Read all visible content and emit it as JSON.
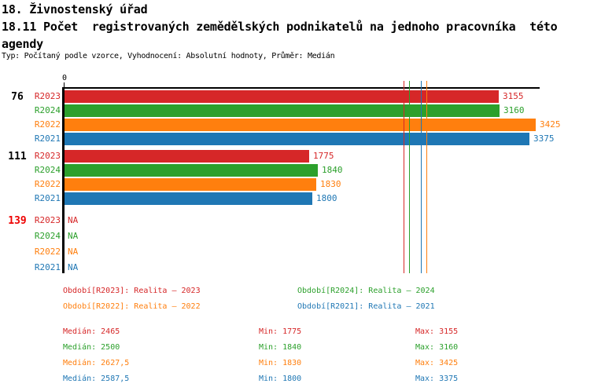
{
  "header": {
    "title": "18. Živnostenský úřad",
    "subtitle_line1": "18.11 Počet  registrovaných zemědělských podnikatelů na jednoho pracovníka  této",
    "subtitle_line2": "agendy",
    "meta": "Typ: Počítaný podle vzorce, Vyhodnocení: Absolutní hodnoty, Průměr: Medián"
  },
  "colors": {
    "R2023": "#d62728",
    "R2024": "#2ca02c",
    "R2022": "#ff7f0e",
    "R2021": "#1f77b4",
    "group_label": "#000000",
    "group_label_na": "#ee0000",
    "axis": "#000000"
  },
  "chart_data": {
    "type": "bar",
    "orientation": "horizontal",
    "x_axis": {
      "origin_label": "0",
      "xlim": [
        0,
        3460
      ],
      "grid": false
    },
    "na_text": "NA",
    "series_order": [
      "R2023",
      "R2024",
      "R2022",
      "R2021"
    ],
    "groups": [
      {
        "label": "76",
        "has_data": true,
        "values": {
          "R2023": 3155,
          "R2024": 3160,
          "R2022": 3425,
          "R2021": 3375
        }
      },
      {
        "label": "111",
        "has_data": true,
        "values": {
          "R2023": 1775,
          "R2024": 1840,
          "R2022": 1830,
          "R2021": 1800
        }
      },
      {
        "label": "139",
        "has_data": false,
        "values": {
          "R2023": null,
          "R2024": null,
          "R2022": null,
          "R2021": null
        }
      }
    ],
    "median_lines": {
      "R2023": 2465,
      "R2024": 2500,
      "R2022": 2627.5,
      "R2021": 2587.5
    }
  },
  "legend": [
    {
      "series": "R2023",
      "label": "Období[R2023]: Realita – 2023"
    },
    {
      "series": "R2024",
      "label": "Období[R2024]: Realita – 2024"
    },
    {
      "series": "R2022",
      "label": "Období[R2022]: Realita – 2022"
    },
    {
      "series": "R2021",
      "label": "Období[R2021]: Realita – 2021"
    }
  ],
  "stats_labels": {
    "median": "Medián",
    "min": "Min",
    "max": "Max"
  },
  "stats": [
    {
      "series": "R2023",
      "median": "2465",
      "min": "1775",
      "max": "3155"
    },
    {
      "series": "R2024",
      "median": "2500",
      "min": "1840",
      "max": "3160"
    },
    {
      "series": "R2022",
      "median": "2627,5",
      "min": "1830",
      "max": "3425"
    },
    {
      "series": "R2021",
      "median": "2587,5",
      "min": "1800",
      "max": "3375"
    }
  ]
}
